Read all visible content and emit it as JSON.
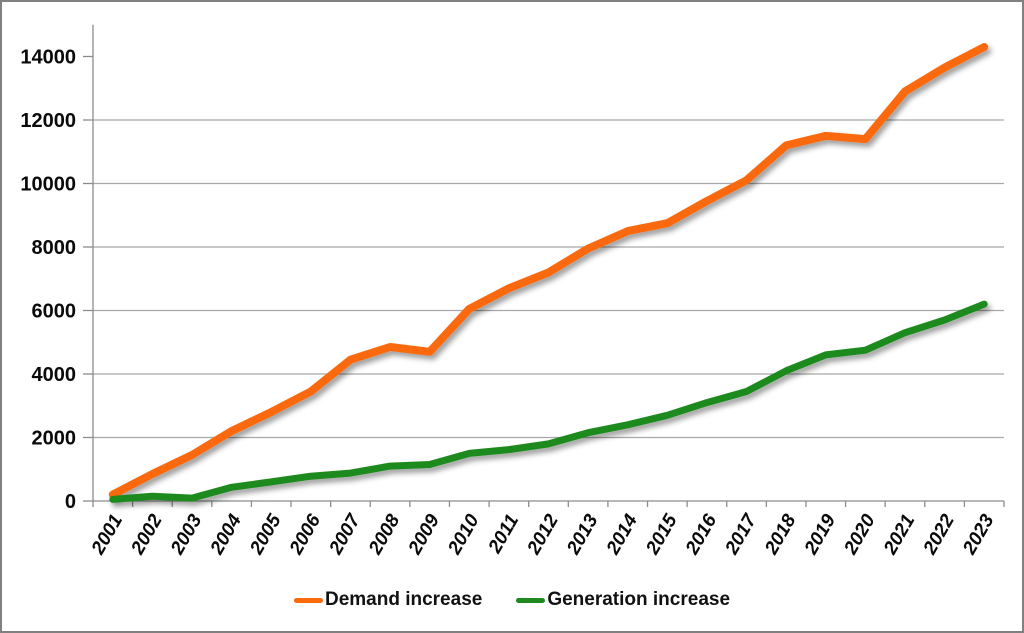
{
  "chart_data": {
    "type": "line",
    "title": "",
    "categories": [
      "2001",
      "2002",
      "2003",
      "2004",
      "2005",
      "2006",
      "2007",
      "2008",
      "2009",
      "2010",
      "2011",
      "2012",
      "2013",
      "2014",
      "2015",
      "2016",
      "2017",
      "2018",
      "2019",
      "2020",
      "2021",
      "2022",
      "2023"
    ],
    "series": [
      {
        "name": "Demand increase",
        "color": "#FA690A",
        "stroke_width": 8,
        "values": [
          200,
          850,
          1450,
          2200,
          2800,
          3450,
          4450,
          4850,
          4700,
          6050,
          6700,
          7200,
          7950,
          8500,
          8750,
          9450,
          10100,
          11200,
          11500,
          11400,
          12900,
          13650,
          14300
        ]
      },
      {
        "name": "Generation increase",
        "color": "#1E8A1E",
        "stroke_width": 7,
        "values": [
          50,
          150,
          90,
          430,
          600,
          780,
          880,
          1100,
          1150,
          1500,
          1620,
          1800,
          2150,
          2400,
          2700,
          3100,
          3450,
          4100,
          4600,
          4750,
          5300,
          5700,
          6200
        ]
      }
    ],
    "xlabel": "",
    "ylabel": "",
    "ylim": [
      0,
      15000
    ],
    "ytick_step": 2000,
    "ytick_labels": [
      "0",
      "2000",
      "4000",
      "6000",
      "8000",
      "10000",
      "12000",
      "14000"
    ],
    "x_label_rotation_deg": -60,
    "grid": true,
    "legend_position": "bottom"
  },
  "legend": {
    "items": [
      {
        "label": "Demand increase",
        "color": "#FA690A"
      },
      {
        "label": "Generation increase",
        "color": "#1E8A1E"
      }
    ]
  },
  "colors": {
    "background": "#FFFFFF",
    "chart_border": "#808080",
    "gridline": "#A8A8A8",
    "axis": "#8C8C8C",
    "tick_text": "#0A0A0A",
    "legend_text": "#111111"
  }
}
